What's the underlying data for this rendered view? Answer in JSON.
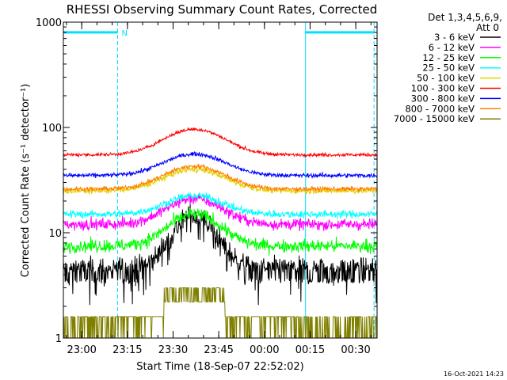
{
  "chart_data": {
    "type": "line",
    "title": "RHESSI Observing Summary Count Rates, Corrected",
    "xlabel": "Start Time (18-Sep-07 22:52:02)",
    "ylabel": "Corrected Count Rate (s⁻¹ detector⁻¹)",
    "y_scale": "log",
    "ylim": [
      1,
      1000
    ],
    "xlim_minutes": [
      -6.03,
      97.0
    ],
    "yticks": [
      {
        "v": 1,
        "label": "1"
      },
      {
        "v": 10,
        "label": "10"
      },
      {
        "v": 100,
        "label": "100"
      },
      {
        "v": 1000,
        "label": "1000"
      }
    ],
    "xticks": [
      {
        "m": 0,
        "label": "23:00"
      },
      {
        "m": 15,
        "label": "23:15"
      },
      {
        "m": 30,
        "label": "23:30"
      },
      {
        "m": 45,
        "label": "23:45"
      },
      {
        "m": 60,
        "label": "00:00"
      },
      {
        "m": 75,
        "label": "00:15"
      },
      {
        "m": 90,
        "label": "00:30"
      }
    ],
    "detectors_label": "Det 1,3,4,5,6,9,",
    "attenuator_label": "Att 0",
    "timestamp": "16-Oct-2021 14:23",
    "flag_label": "N",
    "night_intervals": [
      [
        -6.03,
        11.8
      ],
      [
        73.5,
        96.0
      ]
    ],
    "night_bar_value": 800,
    "series": [
      {
        "name": "3 - 6 keV",
        "color": "#000000",
        "base": 4.5,
        "peak": 3.2,
        "center": 37,
        "width": 9,
        "noise": 0.26,
        "quant": 1
      },
      {
        "name": "6 - 12 keV",
        "color": "#ff00ff",
        "base": 12,
        "peak": 1.75,
        "center": 37,
        "width": 12,
        "noise": 0.12,
        "quant": 0
      },
      {
        "name": "12 - 25 keV",
        "color": "#00ff00",
        "base": 7.5,
        "peak": 2.0,
        "center": 37,
        "width": 11,
        "noise": 0.14,
        "quant": 0
      },
      {
        "name": "25 - 50 keV",
        "color": "#00ffff",
        "base": 15,
        "peak": 1.5,
        "center": 37,
        "width": 12,
        "noise": 0.08,
        "quant": 0
      },
      {
        "name": "50 - 100 keV",
        "color": "#e5d100",
        "base": 25,
        "peak": 1.6,
        "center": 37,
        "width": 13,
        "noise": 0.06,
        "quant": 0
      },
      {
        "name": "100 - 300 keV",
        "color": "#ff0000",
        "base": 55,
        "peak": 1.75,
        "center": 37,
        "width": 13,
        "noise": 0.035,
        "quant": 0
      },
      {
        "name": "300 - 800 keV",
        "color": "#0000ff",
        "base": 35,
        "peak": 1.6,
        "center": 37,
        "width": 13,
        "noise": 0.045,
        "quant": 0
      },
      {
        "name": "800 - 7000 keV",
        "color": "#ff8000",
        "base": 26,
        "peak": 1.65,
        "center": 37,
        "width": 13,
        "noise": 0.05,
        "quant": 0
      },
      {
        "name": "7000 - 15000 keV",
        "color": "#808000",
        "base": 1.2,
        "peak": 1.0,
        "center": 37,
        "width": 12,
        "noise": 0.0,
        "quant": 2
      }
    ]
  }
}
